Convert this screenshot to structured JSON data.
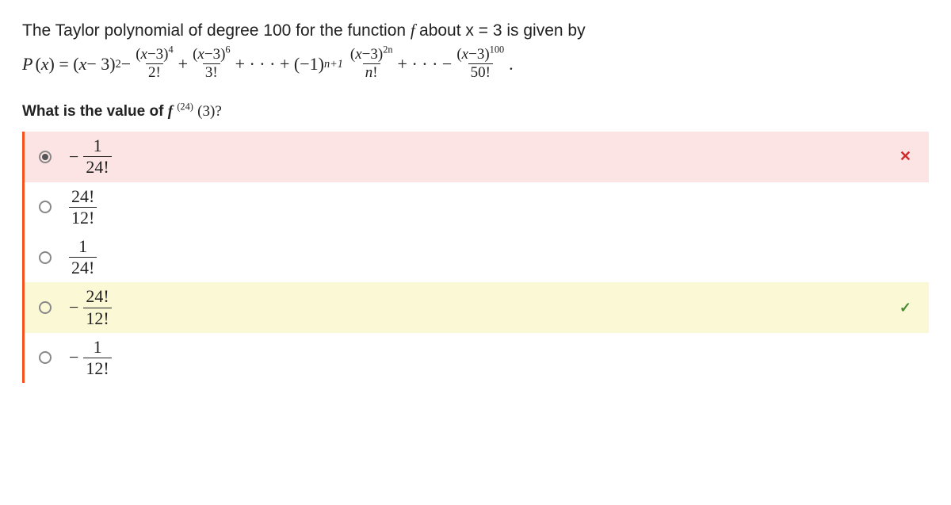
{
  "prompt": "The Taylor polynomial of degree 100 for the function f about x = 3 is given by",
  "formula": {
    "lead_P": "P",
    "lead_open": "(",
    "lead_x": "x",
    "lead_close": ") = (",
    "lead_x2": "x",
    "lead_minus3": " − 3)",
    "lead_exp2": "2",
    "minus1": " − ",
    "t2_num_l": "(",
    "t2_num_x": "x",
    "t2_num_m": "−3)",
    "t2_num_e": "4",
    "t2_den": "2!",
    "plus1": " + ",
    "t3_num_l": "(",
    "t3_num_x": "x",
    "t3_num_m": "−3)",
    "t3_num_e": "6",
    "t3_den": "3!",
    "dots1": " + · · · + (−1)",
    "npow": "n+1",
    "tn_num_l": "(",
    "tn_num_x": "x",
    "tn_num_m": "−3)",
    "tn_num_e": "2n",
    "tn_den_n": "n",
    "tn_den_bang": "!",
    "dots2": " + · · · − ",
    "tl_num_l": "(",
    "tl_num_x": "x",
    "tl_num_m": "−3)",
    "tl_num_e": "100",
    "tl_den": "50!",
    "period": "."
  },
  "question_prefix": "What is the value of ",
  "question_f": "f",
  "question_sup": "(24)",
  "question_arg": " (3)?",
  "options": [
    {
      "neg": "−",
      "num": "1",
      "den": "24!",
      "selected": true,
      "state": "wrong"
    },
    {
      "neg": "",
      "num": "24!",
      "den": "12!",
      "selected": false,
      "state": "plain"
    },
    {
      "neg": "",
      "num": "1",
      "den": "24!",
      "selected": false,
      "state": "plain"
    },
    {
      "neg": "−",
      "num": "24!",
      "den": "12!",
      "selected": false,
      "state": "correct"
    },
    {
      "neg": "−",
      "num": "1",
      "den": "12!",
      "selected": false,
      "state": "plain"
    }
  ],
  "marks": {
    "wrong": "✕",
    "correct": "✓"
  },
  "colors": {
    "accent_border": "#f4511c",
    "wrong_bg": "#fce4e4",
    "correct_bg": "#fbf8d6",
    "wrong_mark": "#d02828",
    "correct_mark": "#4a8a32"
  }
}
